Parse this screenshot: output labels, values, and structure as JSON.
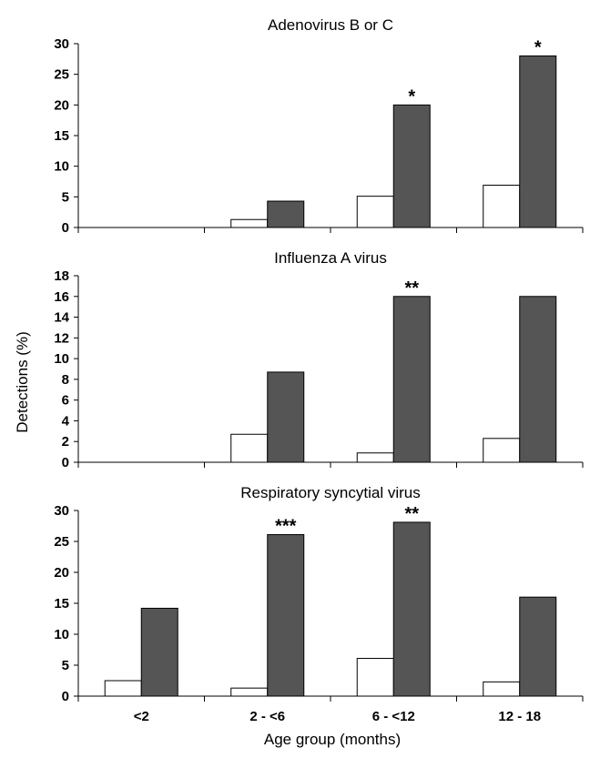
{
  "colors": {
    "series_a": "#ffffff",
    "series_b": "#555555"
  },
  "chart_data": {
    "type": "bar",
    "categories": [
      "<2",
      "2 - <6",
      "6 - <12",
      "12 - 18"
    ],
    "xlabel": "Age group (months)",
    "ylabel": "Detections (%)",
    "grid": false,
    "legend": "none",
    "panels": [
      {
        "title": "Adenovirus B or C",
        "ylim": [
          0,
          30
        ],
        "yticks": [
          0,
          5,
          10,
          15,
          20,
          25,
          30
        ],
        "series": [
          {
            "values": [
              0,
              1.3,
              5.1,
              6.9
            ]
          },
          {
            "values": [
              0,
              4.3,
              20,
              28
            ]
          }
        ],
        "significance": [
          "",
          "",
          "*",
          "*"
        ]
      },
      {
        "title": "Influenza A virus",
        "ylim": [
          0,
          18
        ],
        "yticks": [
          0,
          2,
          4,
          6,
          8,
          10,
          12,
          14,
          16,
          18
        ],
        "series": [
          {
            "values": [
              0,
              2.7,
              0.9,
              2.3
            ]
          },
          {
            "values": [
              0,
              8.7,
              16,
              16
            ]
          }
        ],
        "significance": [
          "",
          "",
          "**",
          ""
        ]
      },
      {
        "title": "Respiratory syncytial virus",
        "ylim": [
          0,
          30
        ],
        "yticks": [
          0,
          5,
          10,
          15,
          20,
          25,
          30
        ],
        "series": [
          {
            "values": [
              2.5,
              1.3,
              6.1,
              2.3
            ]
          },
          {
            "values": [
              14.2,
              26.1,
              28.1,
              16
            ]
          }
        ],
        "significance": [
          "",
          "***",
          "**",
          ""
        ]
      }
    ]
  }
}
